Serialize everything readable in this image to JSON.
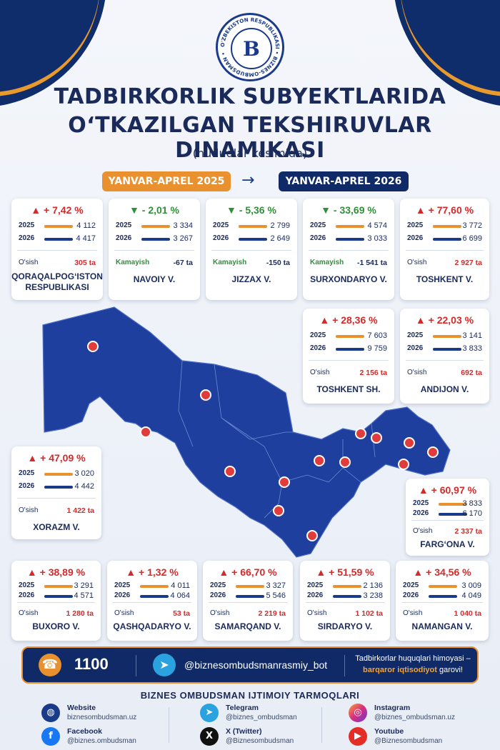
{
  "header": {
    "logo_letter": "B",
    "logo_ring_text": "O'ZBEKISTON RESPUBLIKASI • BIZNES-OMBUDSMAN •",
    "title_line1": "TADBIRKORLIK SUBYEKTLARIDA",
    "title_line2": "O‘TKAZILGAN TEKSHIRUVLAR DINAMIKASI",
    "subtitle": "(hududlar kesimida)",
    "period_from": "YANVAR-APREL 2025",
    "period_arrow": "→",
    "period_to": "YANVAR-APREL 2026"
  },
  "labels": {
    "year1": "2025",
    "year2": "2026"
  },
  "regions": [
    {
      "name": "QORAQALPOG‘ISTON RESPUBLIKASI",
      "pct": "▲ + 7,42 %",
      "dir": "up",
      "v2025": "4 112",
      "v2026": "4 417",
      "delta_label": "O'sish",
      "delta": "305 ta"
    },
    {
      "name": "NAVOIY V.",
      "pct": "▼ - 2,01 %",
      "dir": "down",
      "v2025": "3 334",
      "v2026": "3 267",
      "delta_label": "Kamayish",
      "delta": "-67 ta"
    },
    {
      "name": "JIZZAX V.",
      "pct": "▼ - 5,36 %",
      "dir": "down",
      "v2025": "2 799",
      "v2026": "2 649",
      "delta_label": "Kamayish",
      "delta": "-150 ta"
    },
    {
      "name": "SURXONDARYO V.",
      "pct": "▼ - 33,69 %",
      "dir": "down",
      "v2025": "4 574",
      "v2026": "3 033",
      "delta_label": "Kamayish",
      "delta": "-1 541 ta"
    },
    {
      "name": "TOSHKENT V.",
      "pct": "▲ + 77,60 %",
      "dir": "up",
      "v2025": "3 772",
      "v2026": "6 699",
      "delta_label": "O'sish",
      "delta": "2 927 ta"
    },
    {
      "name": "TOSHKENT SH.",
      "pct": "▲ + 28,36 %",
      "dir": "up",
      "v2025": "7 603",
      "v2026": "9 759",
      "delta_label": "O'sish",
      "delta": "2 156 ta"
    },
    {
      "name": "ANDIJON V.",
      "pct": "▲ + 22,03 %",
      "dir": "up",
      "v2025": "3 141",
      "v2026": "3 833",
      "delta_label": "O'sish",
      "delta": "692 ta"
    },
    {
      "name": "XORAZM V.",
      "pct": "▲ + 47,09 %",
      "dir": "up",
      "v2025": "3 020",
      "v2026": "4 442",
      "delta_label": "O'sish",
      "delta": "1 422 ta"
    },
    {
      "name": "FARG‘ONA V.",
      "pct": "▲ + 60,97 %",
      "dir": "up",
      "v2025": "3 833",
      "v2026": "6 170",
      "delta_label": "O'sish",
      "delta": "2 337 ta"
    },
    {
      "name": "BUXORO V.",
      "pct": "▲ + 38,89 %",
      "dir": "up",
      "v2025": "3 291",
      "v2026": "4 571",
      "delta_label": "O'sish",
      "delta": "1 280 ta"
    },
    {
      "name": "QASHQADARYO V.",
      "pct": "▲ + 1,32 %",
      "dir": "up",
      "v2025": "4 011",
      "v2026": "4 064",
      "delta_label": "O'sish",
      "delta": "53 ta"
    },
    {
      "name": "SAMARQAND V.",
      "pct": "▲ + 66,70 %",
      "dir": "up",
      "v2025": "3 327",
      "v2026": "5 546",
      "delta_label": "O'sish",
      "delta": "2 219 ta"
    },
    {
      "name": "SIRDARYO V.",
      "pct": "▲ + 51,59 %",
      "dir": "up",
      "v2025": "2 136",
      "v2026": "3 238",
      "delta_label": "O'sish",
      "delta": "1 102 ta"
    },
    {
      "name": "NAMANGAN V.",
      "pct": "▲ + 34,56 %",
      "dir": "up",
      "v2025": "3 009",
      "v2026": "4 049",
      "delta_label": "O'sish",
      "delta": "1 040 ta"
    }
  ],
  "colors": {
    "navy": "#0f2a66",
    "orange": "#e8912e",
    "up": "#d42a2a",
    "down": "#2f8f3a",
    "map": "#1f3f9e"
  },
  "contact": {
    "phone_icon": "phone-icon",
    "phone": "1100",
    "telegram_bot": "@biznesombudsmanrasmiy_bot",
    "slogan_part1": "Tadbirkorlar huquqlari himoyasi –",
    "slogan_highlight": "barqaror iqtisodiyot",
    "slogan_part2": " garovi!"
  },
  "social": {
    "title": "BIZNES OMBUDSMAN IJTIMOIY TARMOQLARI",
    "items": [
      {
        "name": "Website",
        "handle": "biznesombudsman.uz",
        "icon": "globe-icon"
      },
      {
        "name": "Facebook",
        "handle": "@biznes.ombudsman",
        "icon": "facebook-icon"
      },
      {
        "name": "Telegram",
        "handle": "@biznes_ombudsman",
        "icon": "telegram-icon"
      },
      {
        "name": "X (Twitter)",
        "handle": "@Biznesombudsman",
        "icon": "x-icon"
      },
      {
        "name": "Instagram",
        "handle": "@biznes_ombudsman.uz",
        "icon": "instagram-icon"
      },
      {
        "name": "Youtube",
        "handle": "@Biznesombudsman",
        "icon": "youtube-icon"
      }
    ]
  }
}
